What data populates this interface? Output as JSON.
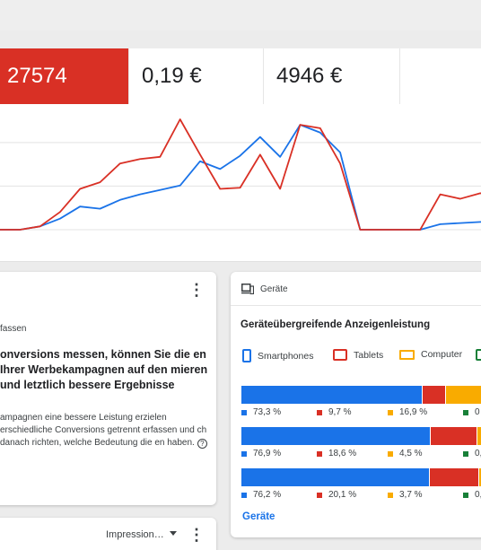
{
  "metrics": [
    {
      "value": "27574"
    },
    {
      "value": "0,19 €"
    },
    {
      "value": "4946 €"
    },
    {
      "value": ""
    }
  ],
  "chart_data": {
    "type": "line",
    "title": "",
    "xlabel": "",
    "ylabel": "",
    "ylim": [
      0,
      100
    ],
    "grid": true,
    "x": [
      0,
      1,
      2,
      3,
      4,
      5,
      6,
      7,
      8,
      9,
      10,
      11,
      12,
      13,
      14,
      15,
      16,
      17,
      18,
      19,
      20,
      21,
      22,
      23,
      24,
      25
    ],
    "series": [
      {
        "color": "#1a73e8",
        "values": [
          0,
          0,
          3,
          10,
          21,
          19,
          27,
          32,
          36,
          40,
          62,
          55,
          67,
          84,
          66,
          95,
          88,
          70,
          0,
          0,
          0,
          0,
          5,
          6,
          7,
          7
        ]
      },
      {
        "color": "#d93025",
        "values": [
          0,
          0,
          3,
          16,
          37,
          43,
          60,
          64,
          66,
          100,
          68,
          37,
          38,
          68,
          37,
          95,
          92,
          60,
          0,
          0,
          0,
          0,
          32,
          28,
          33,
          32
        ]
      }
    ]
  },
  "left_card": {
    "subtitle": "fassen",
    "bold_text": "onversions messen, können Sie die en Ihrer Werbekampagnen auf den mieren und letztlich bessere Ergebnisse",
    "body_text": "ampagnen eine bessere Leistung erzielen erschiedliche Conversions getrennt erfassen und ch danach richten, welche Bedeutung die en haben.",
    "help_icon": "?"
  },
  "left_bottom_card": {
    "dropdown_label": "Impression…"
  },
  "devices_card": {
    "header_label": "Geräte",
    "title": "Geräteübergreifende Anzeigenleistung",
    "legend": [
      {
        "label": "Smartphones",
        "icon": "smartphone-icon",
        "color": "#1a73e8"
      },
      {
        "label": "Tablets",
        "icon": "tablet-icon",
        "color": "#d93025"
      },
      {
        "label": "Computer",
        "icon": "computer-icon",
        "color": "#f9ab00"
      },
      {
        "label": "",
        "icon": "tv-icon",
        "color": "#188038"
      }
    ],
    "rows": [
      {
        "values": [
          73.3,
          9.7,
          16.9,
          0.1
        ],
        "labels": [
          "73,3 %",
          "9,7 %",
          "16,9 %",
          "0"
        ]
      },
      {
        "values": [
          76.9,
          18.6,
          4.5,
          0.0
        ],
        "labels": [
          "76,9 %",
          "18,6 %",
          "4,5 %",
          "0,"
        ]
      },
      {
        "values": [
          76.2,
          20.1,
          3.7,
          0.0
        ],
        "labels": [
          "76,2 %",
          "20,1 %",
          "3,7 %",
          "0,"
        ]
      }
    ],
    "link_label": "Geräte"
  },
  "colors": {
    "blue": "#1a73e8",
    "red": "#d93025",
    "yellow": "#f9ab00",
    "green": "#188038"
  }
}
